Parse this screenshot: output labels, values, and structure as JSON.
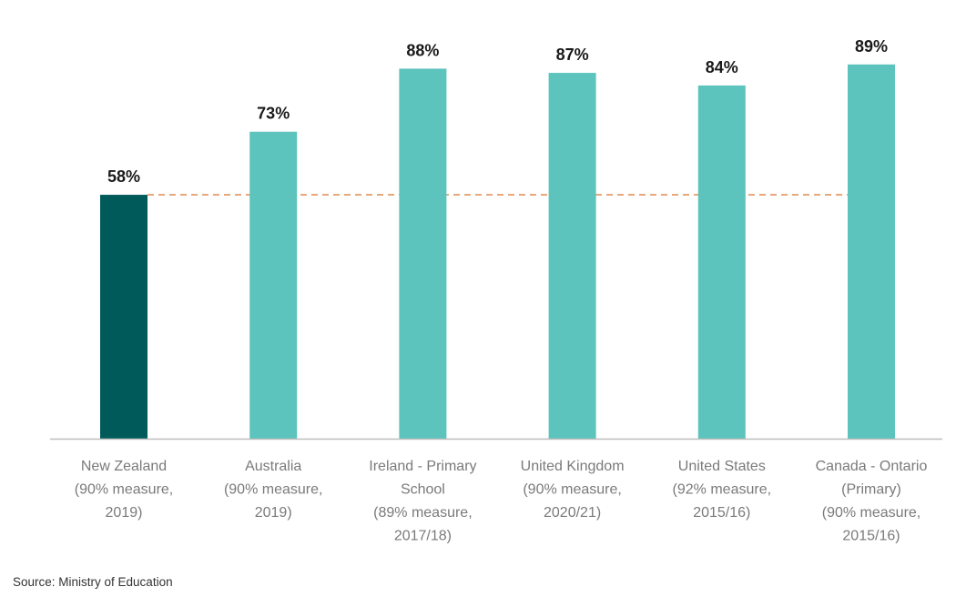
{
  "chart_data": {
    "type": "bar",
    "title": "",
    "xlabel": "",
    "ylabel": "",
    "ylim": [
      0,
      100
    ],
    "grid": false,
    "categories": [
      [
        "New Zealand",
        "(90% measure,",
        "2019)"
      ],
      [
        "Australia",
        "(90% measure,",
        "2019)"
      ],
      [
        "Ireland - Primary",
        "School",
        "(89% measure,",
        "2017/18)"
      ],
      [
        "United Kingdom",
        "(90% measure,",
        "2020/21)"
      ],
      [
        "United States",
        "(92% measure,",
        "2015/16)"
      ],
      [
        "Canada - Ontario",
        "(Primary)",
        "(90% measure,",
        "2015/16)"
      ]
    ],
    "values": [
      58,
      73,
      88,
      87,
      84,
      89
    ],
    "data_labels": [
      "58%",
      "73%",
      "88%",
      "87%",
      "84%",
      "89%"
    ],
    "reference_line": {
      "value": 58,
      "style": "dashed",
      "color": "#e8a87c"
    },
    "colors": {
      "highlight": "#005a5a",
      "default": "#5cc4bd",
      "axis": "#bdbdbd"
    }
  },
  "source": "Source: Ministry of Education"
}
